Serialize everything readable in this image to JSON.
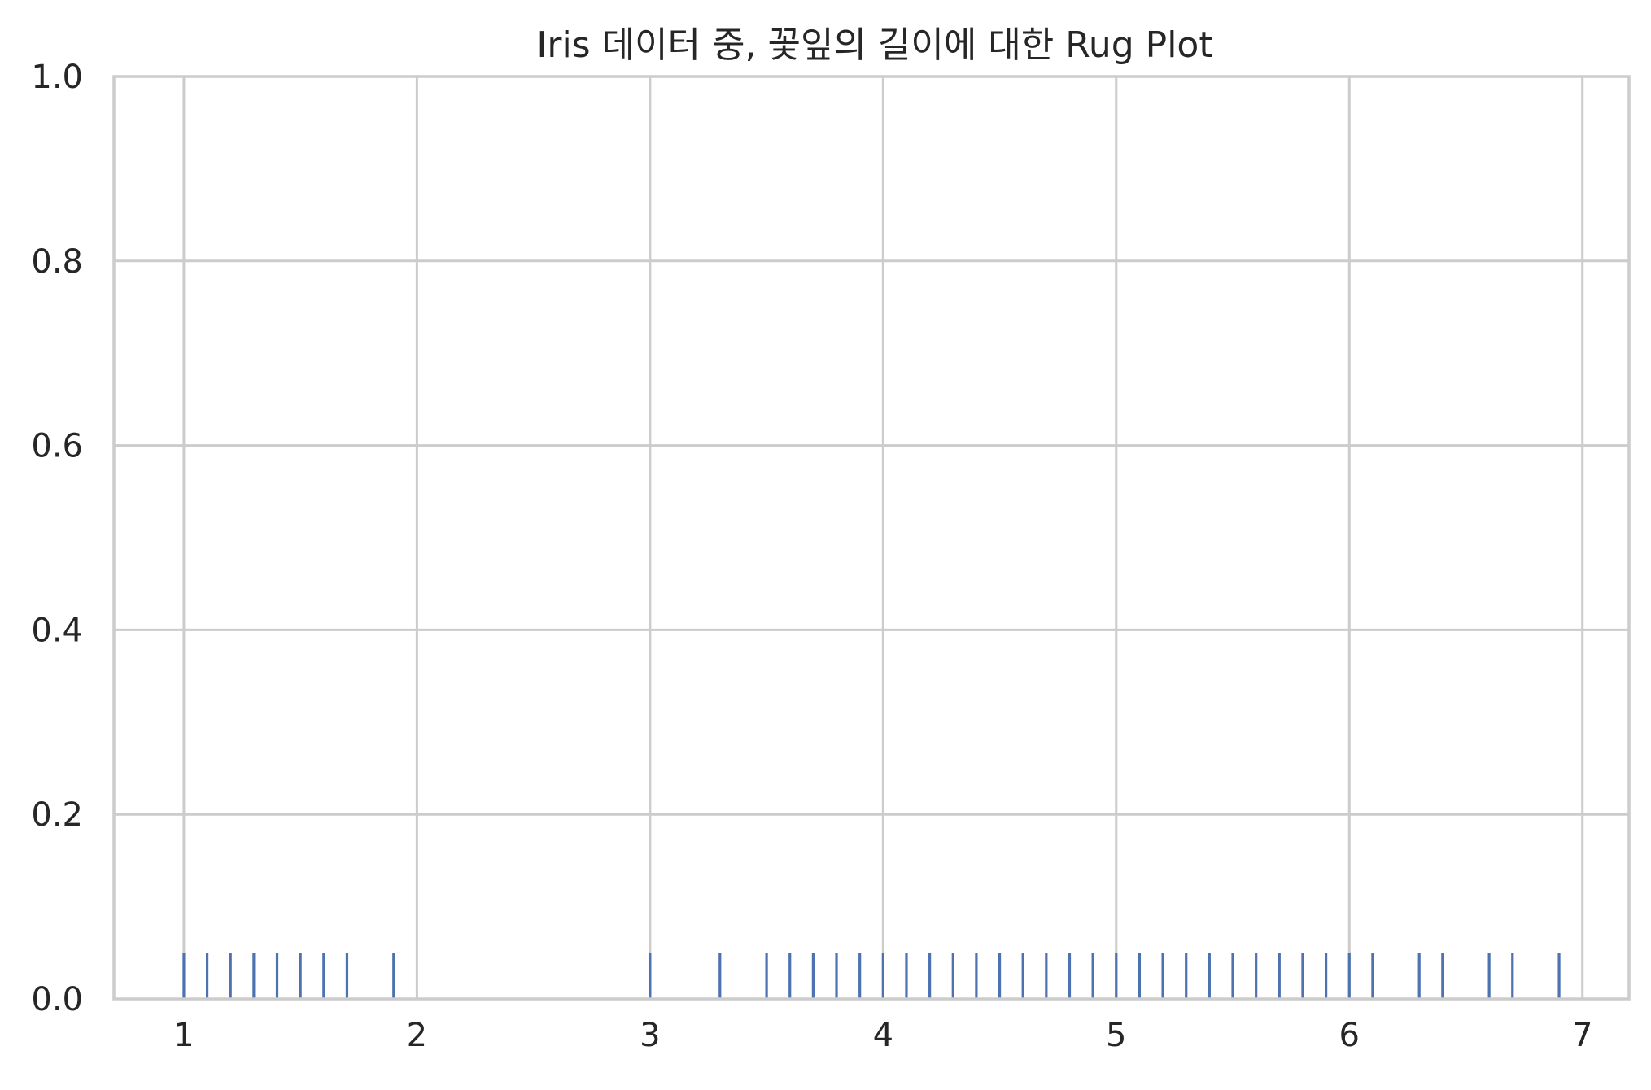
{
  "chart_data": {
    "type": "rug",
    "title": "Iris 데이터 중, 꽃잎의 길이에 대한 Rug Plot",
    "xlabel": "",
    "ylabel": "",
    "xlim": [
      0.7,
      7.2
    ],
    "ylim": [
      0.0,
      1.0
    ],
    "x_ticks": [
      1,
      2,
      3,
      4,
      5,
      6,
      7
    ],
    "x_tick_labels": [
      "1",
      "2",
      "3",
      "4",
      "5",
      "6",
      "7"
    ],
    "y_ticks": [
      0.0,
      0.2,
      0.4,
      0.6,
      0.8,
      1.0
    ],
    "y_tick_labels": [
      "0.0",
      "0.2",
      "0.4",
      "0.6",
      "0.8",
      "1.0"
    ],
    "rug_height": 0.05,
    "grid": true,
    "color": "#4c72b0",
    "grid_color": "#cccccc",
    "values": [
      1.0,
      1.1,
      1.2,
      1.3,
      1.4,
      1.5,
      1.6,
      1.7,
      1.9,
      3.0,
      3.3,
      3.5,
      3.6,
      3.7,
      3.8,
      3.9,
      4.0,
      4.1,
      4.2,
      4.3,
      4.4,
      4.5,
      4.6,
      4.7,
      4.8,
      4.9,
      5.0,
      5.1,
      5.2,
      5.3,
      5.4,
      5.5,
      5.6,
      5.7,
      5.8,
      5.9,
      6.0,
      6.1,
      6.3,
      6.4,
      6.6,
      6.7,
      6.9
    ]
  }
}
